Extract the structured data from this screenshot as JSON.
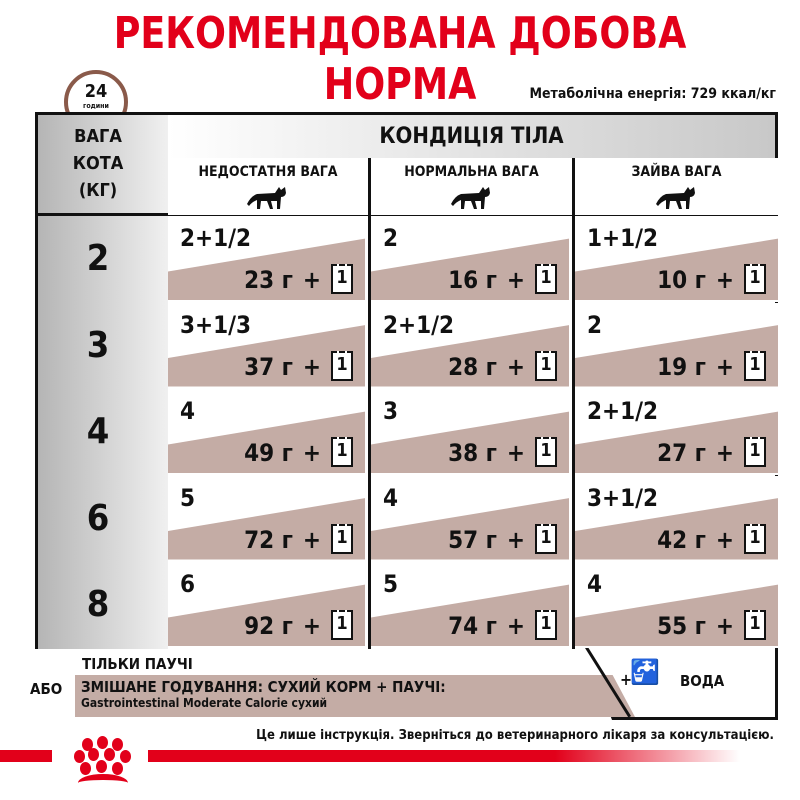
{
  "title": "РЕКОМЕНДОВАНА ДОБОВА НОРМА",
  "clock": {
    "number": "24",
    "label": "години"
  },
  "energy": "Метаболічна енергія: 729 ккал/кг",
  "table": {
    "weight_header": [
      "ВАГА",
      "КОТА",
      "(КГ)"
    ],
    "condition_header": "КОНДИЦІЯ ТІЛА",
    "columns": [
      "НЕДОСТАТНЯ ВАГА",
      "НОРМАЛЬНА ВАГА",
      "ЗАЙВА ВАГА"
    ],
    "rows": [
      {
        "kg": "2",
        "cells": [
          {
            "pouch": "2+1/2",
            "dry": "23 г"
          },
          {
            "pouch": "2",
            "dry": "16 г"
          },
          {
            "pouch": "1+1/2",
            "dry": "10 г"
          }
        ]
      },
      {
        "kg": "3",
        "cells": [
          {
            "pouch": "3+1/3",
            "dry": "37 г"
          },
          {
            "pouch": "2+1/2",
            "dry": "28 г"
          },
          {
            "pouch": "2",
            "dry": "19 г"
          }
        ]
      },
      {
        "kg": "4",
        "cells": [
          {
            "pouch": "4",
            "dry": "49 г"
          },
          {
            "pouch": "3",
            "dry": "38 г"
          },
          {
            "pouch": "2+1/2",
            "dry": "27 г"
          }
        ]
      },
      {
        "kg": "6",
        "cells": [
          {
            "pouch": "5",
            "dry": "72 г"
          },
          {
            "pouch": "4",
            "dry": "57 г"
          },
          {
            "pouch": "3+1/2",
            "dry": "42 г"
          }
        ]
      },
      {
        "kg": "8",
        "cells": [
          {
            "pouch": "6",
            "dry": "92 г"
          },
          {
            "pouch": "5",
            "dry": "74 г"
          },
          {
            "pouch": "4",
            "dry": "55 г"
          }
        ]
      }
    ],
    "plus": "+",
    "pouch_count": "1"
  },
  "legend": {
    "only_pouch": "ТІЛЬКИ ПАУЧІ",
    "or": "АБО",
    "mixed": "ЗМІШАНЕ ГОДУВАННЯ: СУХИЙ КОРМ + ПАУЧІ:",
    "mixed_sub": "Gastrointestinal Moderate Calorie сухий",
    "water_plus": "+",
    "water": "ВОДА"
  },
  "disclaimer": "Це лише інструкція. Зверніться до ветеринарного лікаря за консультацією.",
  "colors": {
    "brand_red": "#e2001a",
    "tan": "#c4aca5"
  }
}
